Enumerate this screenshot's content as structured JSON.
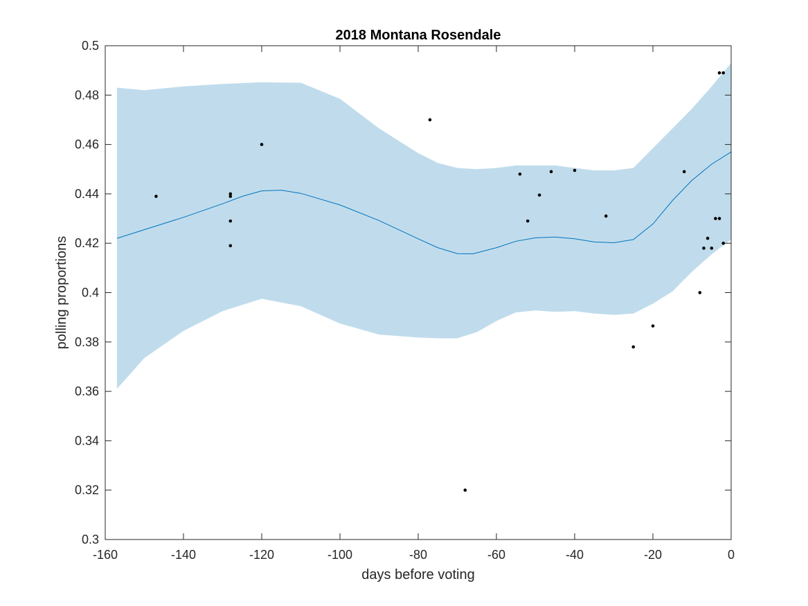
{
  "chart_data": {
    "type": "line",
    "title": "2018 Montana Rosendale",
    "xlabel": "days before voting",
    "ylabel": "polling proportions",
    "xlim": [
      -160,
      0
    ],
    "ylim": [
      0.3,
      0.5
    ],
    "xticks": [
      -160,
      -140,
      -120,
      -100,
      -80,
      -60,
      -40,
      -20,
      0
    ],
    "xtick_labels": [
      "-160",
      "-140",
      "-120",
      "-100",
      "-80",
      "-60",
      "-40",
      "-20",
      "0"
    ],
    "yticks": [
      0.3,
      0.32,
      0.34,
      0.36,
      0.38,
      0.4,
      0.42,
      0.44,
      0.46,
      0.48,
      0.5
    ],
    "ytick_labels": [
      "0.3",
      "0.32",
      "0.34",
      "0.36",
      "0.38",
      "0.4",
      "0.42",
      "0.44",
      "0.46",
      "0.48",
      "0.5"
    ],
    "grid": false,
    "colors": {
      "band": "#c0dcec",
      "line": "#0072bd",
      "points": "#000000",
      "axes": "#262626"
    },
    "trend": {
      "x": [
        -157,
        -150,
        -140,
        -130,
        -125,
        -120,
        -115,
        -110,
        -100,
        -90,
        -80,
        -75,
        -70,
        -66,
        -60,
        -55,
        -50,
        -45,
        -40,
        -35,
        -30,
        -25,
        -20,
        -15,
        -10,
        -5,
        0
      ],
      "y": [
        0.422,
        0.4255,
        0.4305,
        0.436,
        0.439,
        0.4412,
        0.4415,
        0.4402,
        0.4355,
        0.4292,
        0.4218,
        0.4182,
        0.4158,
        0.4157,
        0.4182,
        0.4208,
        0.4222,
        0.4225,
        0.4218,
        0.4205,
        0.4202,
        0.4215,
        0.4278,
        0.4373,
        0.4455,
        0.452,
        0.457
      ]
    },
    "band_upper": {
      "x": [
        -157,
        -150,
        -140,
        -130,
        -120,
        -110,
        -100,
        -90,
        -80,
        -75,
        -70,
        -65,
        -60,
        -55,
        -50,
        -45,
        -40,
        -35,
        -30,
        -25,
        -20,
        -15,
        -10,
        -5,
        0
      ],
      "y": [
        0.483,
        0.482,
        0.4835,
        0.4845,
        0.4852,
        0.485,
        0.4785,
        0.4665,
        0.4565,
        0.4525,
        0.4505,
        0.45,
        0.4505,
        0.4515,
        0.4515,
        0.4515,
        0.4505,
        0.4495,
        0.4495,
        0.4505,
        0.4585,
        0.4665,
        0.4745,
        0.4835,
        0.493
      ]
    },
    "band_lower": {
      "x": [
        -157,
        -150,
        -140,
        -130,
        -120,
        -110,
        -100,
        -90,
        -80,
        -75,
        -70,
        -65,
        -60,
        -55,
        -50,
        -45,
        -40,
        -35,
        -30,
        -25,
        -20,
        -15,
        -10,
        -5,
        0
      ],
      "y": [
        0.361,
        0.3735,
        0.3845,
        0.3925,
        0.3975,
        0.3945,
        0.3875,
        0.383,
        0.3818,
        0.3815,
        0.3815,
        0.384,
        0.3885,
        0.392,
        0.3928,
        0.3922,
        0.3925,
        0.3915,
        0.391,
        0.3915,
        0.3955,
        0.4005,
        0.4085,
        0.4155,
        0.4215
      ]
    },
    "points": {
      "x": [
        -147,
        -128,
        -128,
        -128,
        -128,
        -120,
        -77,
        -68,
        -54,
        -52,
        -49,
        -46,
        -40,
        -32,
        -25,
        -20,
        -12,
        -8,
        -7,
        -6,
        -5,
        -4,
        -3,
        -3,
        -2,
        -2
      ],
      "y": [
        0.439,
        0.44,
        0.439,
        0.429,
        0.419,
        0.46,
        0.47,
        0.32,
        0.448,
        0.429,
        0.4395,
        0.449,
        0.4495,
        0.431,
        0.378,
        0.3865,
        0.449,
        0.4,
        0.418,
        0.422,
        0.418,
        0.43,
        0.43,
        0.489,
        0.489,
        0.42
      ]
    }
  }
}
